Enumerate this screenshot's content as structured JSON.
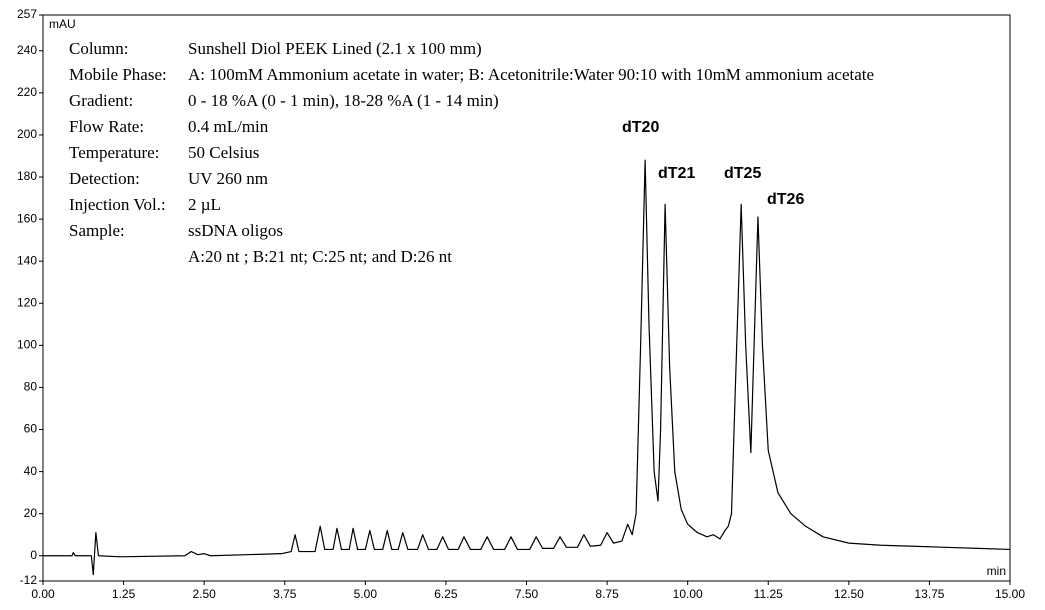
{
  "chart_data": {
    "type": "line",
    "y_label": "mAU",
    "x_label": "min",
    "color": "#000000",
    "xlim": [
      0,
      15
    ],
    "ylim": [
      -12,
      257
    ],
    "xticks": [
      {
        "value": 0,
        "label": "0.00"
      },
      {
        "value": 1.25,
        "label": "1.25"
      },
      {
        "value": 2.5,
        "label": "2.50"
      },
      {
        "value": 3.75,
        "label": "3.75"
      },
      {
        "value": 5,
        "label": "5.00"
      },
      {
        "value": 6.25,
        "label": "6.25"
      },
      {
        "value": 7.5,
        "label": "7.50"
      },
      {
        "value": 8.75,
        "label": "8.75"
      },
      {
        "value": 10,
        "label": "10.00"
      },
      {
        "value": 11.25,
        "label": "11.25"
      },
      {
        "value": 12.5,
        "label": "12.50"
      },
      {
        "value": 13.75,
        "label": "13.75"
      },
      {
        "value": 15,
        "label": "15.00"
      }
    ],
    "yticks": [
      -12,
      0,
      20,
      40,
      60,
      80,
      100,
      120,
      140,
      160,
      180,
      200,
      220,
      240,
      257
    ],
    "info": [
      {
        "label": "Column:",
        "value": "Sunshell Diol PEEK Lined (2.1 x 100 mm)"
      },
      {
        "label": "Mobile Phase:",
        "value": "A: 100mM Ammonium acetate in water; B: Acetonitrile:Water 90:10 with 10mM ammonium acetate"
      },
      {
        "label": "Gradient:",
        "value": "0 - 18 %A (0 - 1 min), 18-28 %A (1 - 14 min)"
      },
      {
        "label": "Flow Rate:",
        "value": "0.4 mL/min"
      },
      {
        "label": "Temperature:",
        "value": "50 Celsius"
      },
      {
        "label": "Detection:",
        "value": "UV 260 nm"
      },
      {
        "label": "Injection Vol.:",
        "value": "2 µL"
      },
      {
        "label": "Sample:",
        "value": "ssDNA oligos"
      }
    ],
    "info_note": "A:20 nt ; B:21 nt; C:25 nt; and D:26 nt",
    "peak_labels": [
      "dT20",
      "dT21",
      "dT25",
      "dT26"
    ],
    "x": [
      0,
      0.45,
      0.47,
      0.5,
      0.75,
      0.78,
      0.82,
      0.86,
      1.2,
      2.2,
      2.3,
      2.4,
      2.5,
      2.6,
      3.7,
      3.85,
      3.91,
      3.97,
      4.22,
      4.3,
      4.37,
      4.5,
      4.56,
      4.63,
      4.75,
      4.81,
      4.88,
      5.0,
      5.07,
      5.14,
      5.27,
      5.34,
      5.41,
      5.51,
      5.58,
      5.66,
      5.81,
      5.89,
      5.98,
      6.11,
      6.2,
      6.29,
      6.44,
      6.53,
      6.63,
      6.79,
      6.89,
      6.99,
      7.16,
      7.26,
      7.36,
      7.55,
      7.65,
      7.75,
      7.92,
      8.02,
      8.12,
      8.29,
      8.39,
      8.49,
      8.65,
      8.75,
      8.85,
      8.98,
      9.07,
      9.14,
      9.2,
      9.27,
      9.34,
      9.4,
      9.48,
      9.54,
      9.58,
      9.65,
      9.72,
      9.8,
      9.9,
      10.0,
      10.15,
      10.3,
      10.4,
      10.5,
      10.58,
      10.63,
      10.68,
      10.74,
      10.83,
      10.9,
      10.98,
      11.03,
      11.09,
      11.16,
      11.25,
      11.4,
      11.6,
      11.83,
      12.1,
      12.5,
      13.0,
      13.5,
      14,
      14.5,
      15
    ],
    "values": [
      0,
      0,
      1.5,
      0,
      0,
      -9,
      11,
      0,
      -0.5,
      0,
      2,
      0.5,
      1,
      0,
      1,
      2,
      10,
      2,
      2,
      14,
      3,
      3,
      13,
      3,
      3,
      13,
      3,
      3,
      12,
      3,
      3,
      12,
      3,
      3,
      11,
      3,
      3,
      10,
      3,
      3,
      9,
      3,
      3,
      9,
      3,
      3,
      9,
      3,
      3,
      9,
      3,
      3,
      9,
      3.5,
      3.5,
      9,
      4,
      4,
      10,
      4.5,
      5,
      11,
      6,
      7,
      15,
      10,
      20,
      100,
      188,
      110,
      40,
      26,
      60,
      167,
      90,
      40,
      22,
      15,
      11,
      9,
      10,
      8,
      12,
      14,
      20,
      80,
      167,
      100,
      49,
      100,
      161,
      100,
      50,
      30,
      20,
      14,
      9,
      6,
      5,
      4.5,
      4,
      3.5,
      3
    ]
  }
}
